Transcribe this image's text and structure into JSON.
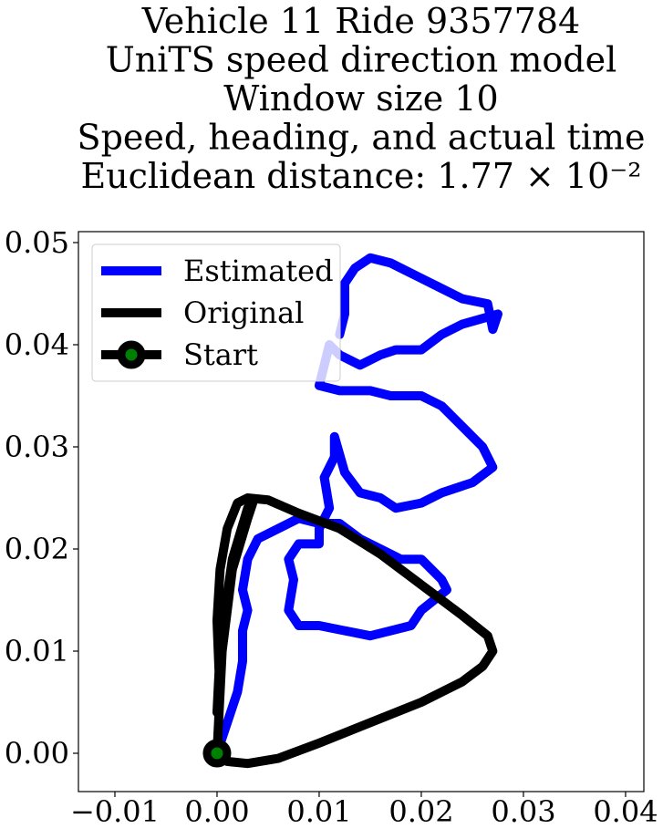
{
  "chart_data": {
    "type": "line",
    "title": [
      "Vehicle 11 Ride 9357784",
      "UniTS speed direction model",
      "Window size 10",
      "Speed, heading, and actual time",
      "Euclidean distance: 1.77 × 10⁻²"
    ],
    "xlim": [
      -0.01357,
      0.04179
    ],
    "ylim": [
      -0.00375,
      0.05107
    ],
    "xticks": [
      {
        "value": -0.01,
        "label": "−0.01"
      },
      {
        "value": 0,
        "label": "0.00"
      },
      0.01,
      0.02,
      0.03,
      0.04
    ],
    "yticks": [
      {
        "value": 0,
        "label": "0.00"
      },
      0.01,
      0.02,
      0.03,
      0.04,
      0.05
    ],
    "legend": "upper left",
    "series": [
      {
        "name": "Estimated",
        "color": "#0000ff",
        "x": [
          0,
          0.001,
          0.002,
          0.0025,
          0.0025,
          0.003,
          0.0025,
          0.003,
          0.004,
          0.006,
          0.008,
          0.01,
          0.012,
          0.014,
          0.016,
          0.018,
          0.02,
          0.022,
          0.0225,
          0.02,
          0.019,
          0.017,
          0.015,
          0.0125,
          0.01,
          0.008,
          0.007,
          0.0075,
          0.007,
          0.008,
          0.01,
          0.01,
          0.011,
          0.0105,
          0.0115,
          0.0115,
          0.0125,
          0.014,
          0.016,
          0.0175,
          0.02,
          0.022,
          0.025,
          0.027,
          0.026,
          0.024,
          0.022,
          0.02,
          0.017,
          0.015,
          0.012,
          0.01,
          0.0105,
          0.011,
          0.012,
          0.014,
          0.016,
          0.0175,
          0.02,
          0.022,
          0.024,
          0.0275,
          0.027,
          0.0265,
          0.024,
          0.022,
          0.02,
          0.018,
          0.017,
          0.015,
          0.0135,
          0.0125,
          0.0125,
          0.012
        ],
        "y": [
          0,
          0.003,
          0.006,
          0.009,
          0.012,
          0.014,
          0.016,
          0.019,
          0.021,
          0.022,
          0.023,
          0.0225,
          0.0225,
          0.021,
          0.02,
          0.019,
          0.019,
          0.017,
          0.016,
          0.014,
          0.0125,
          0.012,
          0.0115,
          0.012,
          0.0125,
          0.0125,
          0.014,
          0.017,
          0.019,
          0.0205,
          0.0205,
          0.022,
          0.024,
          0.027,
          0.029,
          0.031,
          0.0275,
          0.0255,
          0.025,
          0.024,
          0.0245,
          0.0255,
          0.0265,
          0.028,
          0.03,
          0.032,
          0.034,
          0.035,
          0.035,
          0.0355,
          0.0355,
          0.036,
          0.038,
          0.04,
          0.039,
          0.038,
          0.039,
          0.0395,
          0.0395,
          0.041,
          0.042,
          0.043,
          0.0415,
          0.044,
          0.0445,
          0.0455,
          0.0465,
          0.0475,
          0.048,
          0.0485,
          0.0475,
          0.046,
          0.043,
          0.041
        ]
      },
      {
        "name": "Original",
        "color": "#000000",
        "x": [
          0,
          0.001,
          0.003,
          0.006,
          0.01,
          0.015,
          0.02,
          0.024,
          0.026,
          0.027,
          0.0265,
          0.024,
          0.02,
          0.016,
          0.012,
          0.008,
          0.005,
          0.003,
          0.002,
          0.001,
          0.0003,
          0,
          0.0002,
          0,
          0.0005,
          0.0015,
          0.003,
          0.0035,
          0.003,
          0.0015,
          0.0005,
          0
        ],
        "y": [
          0,
          -0.0008,
          -0.001,
          -0.0005,
          0.001,
          0.003,
          0.005,
          0.007,
          0.0085,
          0.01,
          0.0115,
          0.0135,
          0.0165,
          0.0195,
          0.022,
          0.0235,
          0.0248,
          0.025,
          0.0245,
          0.022,
          0.018,
          0.013,
          0.008,
          0.004,
          0.012,
          0.019,
          0.024,
          0.0245,
          0.023,
          0.018,
          0.01,
          0
        ]
      },
      {
        "name": "Start",
        "color": "#000000",
        "marker_color": "#008000",
        "x": [
          0
        ],
        "y": [
          0
        ]
      }
    ]
  }
}
